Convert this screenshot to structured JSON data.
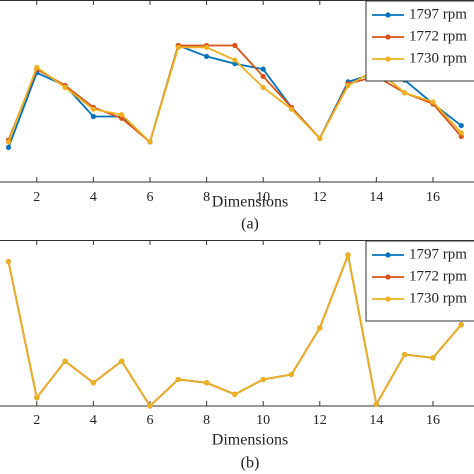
{
  "chart_data": [
    {
      "type": "line",
      "xlabel": "Dimensions",
      "caption": "(a)",
      "x": [
        1,
        2,
        3,
        4,
        5,
        6,
        7,
        8,
        9,
        10,
        11,
        12,
        13,
        14,
        15,
        16,
        17
      ],
      "xlim": [
        0.7,
        17.45
      ],
      "xticks": [
        2,
        4,
        6,
        8,
        10,
        12,
        14,
        16
      ],
      "ylim": [
        0,
        1
      ],
      "legend": "northeast",
      "series": [
        {
          "name": "1797 rpm",
          "color": "#0072bd",
          "values": [
            0.19,
            0.6,
            0.53,
            0.36,
            0.36,
            0.22,
            0.75,
            0.69,
            0.65,
            0.62,
            0.41,
            0.24,
            0.55,
            0.6,
            0.56,
            0.43,
            0.31
          ]
        },
        {
          "name": "1772 rpm",
          "color": "#d95319",
          "values": [
            0.23,
            0.62,
            0.53,
            0.41,
            0.35,
            0.22,
            0.75,
            0.75,
            0.75,
            0.58,
            0.41,
            0.24,
            0.54,
            0.58,
            0.49,
            0.43,
            0.25
          ]
        },
        {
          "name": "1730 rpm",
          "color": "#edb120",
          "values": [
            0.22,
            0.63,
            0.52,
            0.4,
            0.37,
            0.22,
            0.74,
            0.74,
            0.67,
            0.52,
            0.4,
            0.24,
            0.53,
            0.62,
            0.49,
            0.44,
            0.27
          ]
        }
      ]
    },
    {
      "type": "line",
      "xlabel": "Dimensions",
      "caption": "(b)",
      "x": [
        1,
        2,
        3,
        4,
        5,
        6,
        7,
        8,
        9,
        10,
        11,
        12,
        13,
        14,
        15,
        16,
        17
      ],
      "xlim": [
        0.7,
        17.45
      ],
      "xticks": [
        2,
        4,
        6,
        8,
        10,
        12,
        14,
        16
      ],
      "ylim": [
        0,
        1
      ],
      "legend": "northeast",
      "series": [
        {
          "name": "1797 rpm",
          "color": "#0072bd",
          "values": [
            0.87,
            0.05,
            0.27,
            0.14,
            0.27,
            0.0,
            0.16,
            0.14,
            0.07,
            0.16,
            0.19,
            0.47,
            0.91,
            0.01,
            0.31,
            0.29,
            0.49
          ]
        },
        {
          "name": "1772 rpm",
          "color": "#d95319",
          "values": [
            0.87,
            0.05,
            0.27,
            0.14,
            0.27,
            0.0,
            0.16,
            0.14,
            0.07,
            0.16,
            0.19,
            0.47,
            0.91,
            0.01,
            0.31,
            0.29,
            0.49
          ]
        },
        {
          "name": "1730 rpm",
          "color": "#edb120",
          "values": [
            0.87,
            0.05,
            0.27,
            0.14,
            0.27,
            0.0,
            0.16,
            0.14,
            0.07,
            0.16,
            0.19,
            0.47,
            0.91,
            0.01,
            0.31,
            0.29,
            0.49
          ]
        }
      ]
    }
  ]
}
